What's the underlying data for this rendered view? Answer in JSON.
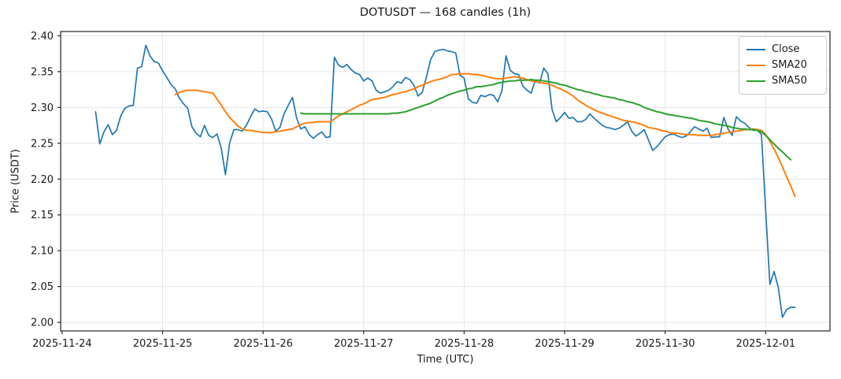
{
  "figure": {
    "title": "DOTUSDT — 168 candles (1h)",
    "xlabel": "Time (UTC)",
    "ylabel": "Price (USDT)"
  },
  "chart_data": {
    "type": "line",
    "title": "DOTUSDT — 168 candles (1h)",
    "symbol": "DOTUSDT",
    "candle_count": 168,
    "interval": "1h",
    "xlabel": "Time (UTC)",
    "ylabel": "Price (USDT)",
    "grid": true,
    "legend_position": "upper right",
    "background": "#ffffff",
    "grid_color": "#e6e6e6",
    "spine_color": "#262626",
    "text_color": "#1a1a1a",
    "x_unit": "hours since 2025-11-24 00:00 UTC",
    "x_start_hour": 8,
    "first_candle_utc": "2025-11-24 08:00",
    "last_candle_utc": "2025-12-01 07:00",
    "ylim": [
      1.988,
      2.406
    ],
    "yticks": [
      {
        "value": 2.0,
        "label": "2.00"
      },
      {
        "value": 2.05,
        "label": "2.05"
      },
      {
        "value": 2.1,
        "label": "2.10"
      },
      {
        "value": 2.15,
        "label": "2.15"
      },
      {
        "value": 2.2,
        "label": "2.20"
      },
      {
        "value": 2.25,
        "label": "2.25"
      },
      {
        "value": 2.3,
        "label": "2.30"
      },
      {
        "value": 2.35,
        "label": "2.35"
      },
      {
        "value": 2.4,
        "label": "2.40"
      }
    ],
    "xticks": [
      {
        "hour": 0,
        "label": "2025-11-24"
      },
      {
        "hour": 24,
        "label": "2025-11-25"
      },
      {
        "hour": 48,
        "label": "2025-11-26"
      },
      {
        "hour": 72,
        "label": "2025-11-27"
      },
      {
        "hour": 96,
        "label": "2025-11-28"
      },
      {
        "hour": 120,
        "label": "2025-11-29"
      },
      {
        "hour": 144,
        "label": "2025-11-30"
      },
      {
        "hour": 168,
        "label": "2025-12-01"
      }
    ],
    "series": [
      {
        "name": "Close",
        "color": "#1f77b4",
        "line_width": 1.7,
        "start_index": 0,
        "values": [
          2.294,
          2.249,
          2.266,
          2.276,
          2.262,
          2.268,
          2.288,
          2.299,
          2.302,
          2.303,
          2.355,
          2.357,
          2.387,
          2.372,
          2.364,
          2.362,
          2.351,
          2.342,
          2.332,
          2.326,
          2.313,
          2.305,
          2.299,
          2.273,
          2.264,
          2.259,
          2.275,
          2.261,
          2.258,
          2.263,
          2.243,
          2.206,
          2.25,
          2.269,
          2.269,
          2.267,
          2.275,
          2.287,
          2.298,
          2.294,
          2.295,
          2.294,
          2.284,
          2.267,
          2.272,
          2.291,
          2.303,
          2.314,
          2.285,
          2.27,
          2.273,
          2.262,
          2.257,
          2.262,
          2.266,
          2.258,
          2.259,
          2.37,
          2.359,
          2.356,
          2.36,
          2.353,
          2.348,
          2.346,
          2.337,
          2.341,
          2.337,
          2.324,
          2.32,
          2.322,
          2.324,
          2.329,
          2.336,
          2.334,
          2.342,
          2.339,
          2.331,
          2.316,
          2.321,
          2.343,
          2.367,
          2.378,
          2.38,
          2.381,
          2.379,
          2.378,
          2.376,
          2.345,
          2.341,
          2.312,
          2.307,
          2.306,
          2.317,
          2.315,
          2.318,
          2.317,
          2.308,
          2.323,
          2.372,
          2.352,
          2.347,
          2.346,
          2.33,
          2.324,
          2.32,
          2.338,
          2.334,
          2.355,
          2.347,
          2.297,
          2.28,
          2.286,
          2.293,
          2.285,
          2.286,
          2.28,
          2.28,
          2.283,
          2.291,
          2.285,
          2.28,
          2.275,
          2.272,
          2.271,
          2.269,
          2.271,
          2.275,
          2.28,
          2.267,
          2.26,
          2.264,
          2.269,
          2.255,
          2.24,
          2.245,
          2.252,
          2.259,
          2.262,
          2.263,
          2.26,
          2.258,
          2.26,
          2.266,
          2.273,
          2.27,
          2.267,
          2.271,
          2.258,
          2.259,
          2.259,
          2.286,
          2.27,
          2.261,
          2.287,
          2.281,
          2.278,
          2.272,
          2.268,
          2.269,
          2.262,
          2.155,
          2.053,
          2.071,
          2.049,
          2.007,
          2.018,
          2.021,
          2.021
        ]
      },
      {
        "name": "SMA20",
        "color": "#ff7f0e",
        "line_width": 2.0,
        "start_index": 19,
        "values": [
          2.318,
          2.321,
          2.323,
          2.324,
          2.324,
          2.324,
          2.323,
          2.322,
          2.321,
          2.32,
          2.312,
          2.303,
          2.294,
          2.286,
          2.28,
          2.274,
          2.27,
          2.268,
          2.268,
          2.267,
          2.266,
          2.265,
          2.265,
          2.265,
          2.266,
          2.267,
          2.268,
          2.269,
          2.27,
          2.273,
          2.276,
          2.278,
          2.279,
          2.279,
          2.28,
          2.28,
          2.28,
          2.28,
          2.284,
          2.288,
          2.291,
          2.294,
          2.297,
          2.3,
          2.303,
          2.305,
          2.308,
          2.311,
          2.312,
          2.313,
          2.314,
          2.316,
          2.318,
          2.319,
          2.321,
          2.322,
          2.324,
          2.326,
          2.329,
          2.331,
          2.334,
          2.336,
          2.338,
          2.339,
          2.341,
          2.343,
          2.346,
          2.346,
          2.347,
          2.347,
          2.347,
          2.346,
          2.346,
          2.345,
          2.344,
          2.342,
          2.341,
          2.34,
          2.34,
          2.341,
          2.342,
          2.343,
          2.342,
          2.341,
          2.339,
          2.337,
          2.336,
          2.335,
          2.334,
          2.333,
          2.331,
          2.328,
          2.326,
          2.323,
          2.32,
          2.316,
          2.311,
          2.307,
          2.303,
          2.3,
          2.297,
          2.294,
          2.292,
          2.29,
          2.288,
          2.286,
          2.284,
          2.282,
          2.281,
          2.28,
          2.279,
          2.277,
          2.275,
          2.272,
          2.271,
          2.27,
          2.268,
          2.267,
          2.265,
          2.264,
          2.264,
          2.263,
          2.262,
          2.262,
          2.262,
          2.261,
          2.261,
          2.261,
          2.261,
          2.262,
          2.263,
          2.264,
          2.265,
          2.266,
          2.267,
          2.268,
          2.269,
          2.269,
          2.27,
          2.269,
          2.268,
          2.262,
          2.253,
          2.242,
          2.23,
          2.217,
          2.203,
          2.19,
          2.176
        ]
      },
      {
        "name": "SMA50",
        "color": "#2ca02c",
        "line_width": 2.0,
        "start_index": 49,
        "values": [
          2.292,
          2.291,
          2.291,
          2.291,
          2.291,
          2.291,
          2.291,
          2.291,
          2.291,
          2.291,
          2.291,
          2.291,
          2.291,
          2.291,
          2.291,
          2.291,
          2.291,
          2.291,
          2.291,
          2.291,
          2.291,
          2.291,
          2.292,
          2.292,
          2.293,
          2.294,
          2.296,
          2.298,
          2.3,
          2.302,
          2.304,
          2.306,
          2.309,
          2.312,
          2.314,
          2.317,
          2.319,
          2.321,
          2.323,
          2.324,
          2.326,
          2.327,
          2.329,
          2.329,
          2.33,
          2.331,
          2.332,
          2.334,
          2.335,
          2.336,
          2.337,
          2.337,
          2.338,
          2.338,
          2.338,
          2.339,
          2.338,
          2.338,
          2.337,
          2.336,
          2.335,
          2.334,
          2.332,
          2.331,
          2.329,
          2.327,
          2.325,
          2.324,
          2.322,
          2.321,
          2.319,
          2.318,
          2.316,
          2.315,
          2.314,
          2.313,
          2.311,
          2.31,
          2.308,
          2.307,
          2.305,
          2.303,
          2.3,
          2.298,
          2.296,
          2.294,
          2.293,
          2.291,
          2.29,
          2.289,
          2.288,
          2.287,
          2.286,
          2.285,
          2.284,
          2.282,
          2.281,
          2.28,
          2.279,
          2.277,
          2.276,
          2.275,
          2.274,
          2.272,
          2.271,
          2.27,
          2.27,
          2.269,
          2.269,
          2.268,
          2.266,
          2.261,
          2.255,
          2.249,
          2.243,
          2.238,
          2.232,
          2.227
        ]
      }
    ]
  }
}
